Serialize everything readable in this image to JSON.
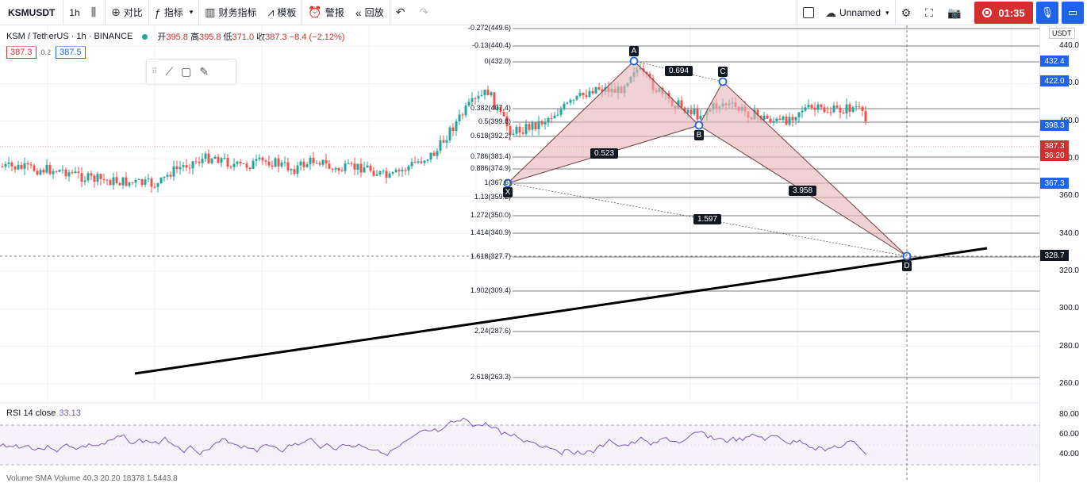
{
  "toolbar": {
    "symbol": "KSMUSDT",
    "interval": "1h",
    "compare": "对比",
    "indicators": "指标",
    "financials": "财务指标",
    "templates": "模板",
    "alert": "警报",
    "replay": "回放",
    "layout_name": "Unnamed",
    "timer": "01:35"
  },
  "legend": {
    "title": "KSM / TetherUS · 1h · BINANCE",
    "open_label": "开",
    "open": "395.8",
    "high_label": "高",
    "high": "395.8",
    "low_label": "低",
    "low": "371.0",
    "close_label": "收",
    "close": "387.3",
    "change": "−8.4 (−2.12%)",
    "bid": "387.3",
    "spread": "0.2",
    "ask": "387.5"
  },
  "axis": {
    "currency": "USDT",
    "labels": [
      "440.0",
      "420.0",
      "400.0",
      "380.0",
      "360.0",
      "340.0",
      "320.0",
      "300.0",
      "280.0",
      "260.0"
    ],
    "rsi_labels": [
      "80.00",
      "60.00",
      "40.00"
    ]
  },
  "price_tags": [
    {
      "value": "432.4",
      "color": "#1e63e9"
    },
    {
      "value": "422.0",
      "color": "#1e63e9"
    },
    {
      "value": "398.3",
      "color": "#1e63e9"
    },
    {
      "value": "387.3",
      "color": "#d32f2f"
    },
    {
      "value": "36:20",
      "color": "#d32f2f"
    },
    {
      "value": "367.3",
      "color": "#1e63e9"
    },
    {
      "value": "328.7",
      "color": "#131722"
    }
  ],
  "fib_levels": [
    "-0.272(449.6)",
    "-0.13(440.4)",
    "0(432.0)",
    "0.382(407.4)",
    "0.5(399.8)",
    "0.618(392.2)",
    "0.786(381.4)",
    "0.886(374.9)",
    "1(367.6)",
    "1.13(359.2)",
    "1.272(350.0)",
    "1.414(340.9)",
    "1.618(327.7)",
    "1.902(309.4)",
    "2.24(287.6)",
    "2.618(263.3)"
  ],
  "pattern": {
    "points": [
      "X",
      "A",
      "B",
      "C",
      "D"
    ],
    "ratios": [
      "0.694",
      "0.523",
      "3.958",
      "1.597"
    ]
  },
  "rsi": {
    "label": "RSI 14 close",
    "value": "33.13"
  },
  "volume_label": "Volume SMA Volume 40.3 20.20 18378 1.5443.8",
  "colors": {
    "up": "#26a69a",
    "down": "#ef5350",
    "pattern_fill": "#e8b4b8",
    "accent": "#1e63e9",
    "record": "#d32f2f"
  }
}
